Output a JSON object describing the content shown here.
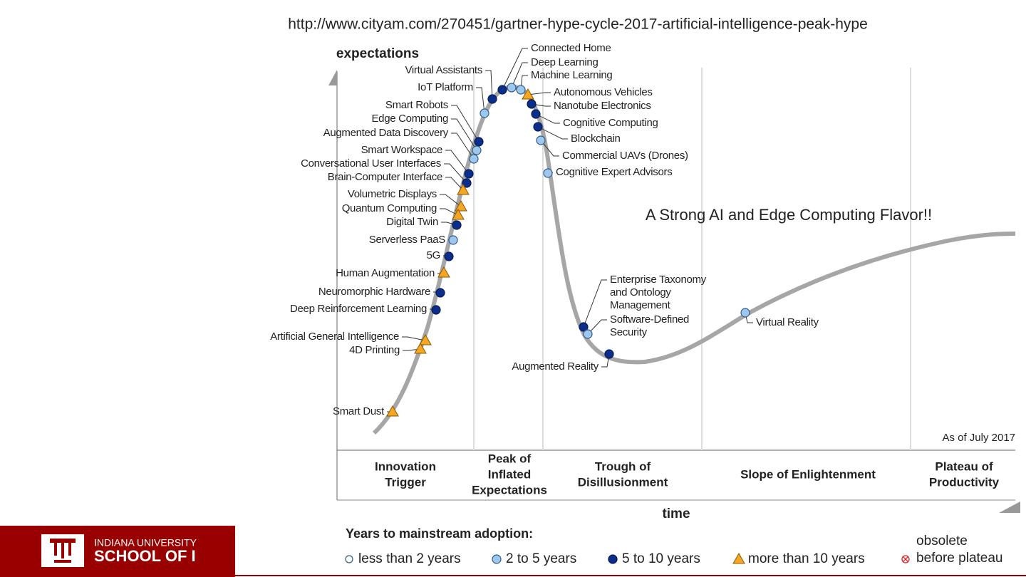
{
  "source_url": "http://www.cityam.com/270451/gartner-hype-cycle-2017-artificial-intelligence-peak-hype",
  "diagram": {
    "y_axis_label": "expectations",
    "x_axis_label": "time",
    "note": "As of July 2017",
    "callout": "A Strong AI and Edge Computing Flavor!!",
    "phases": [
      [
        "Innovation",
        "Trigger"
      ],
      [
        "Peak of",
        "Inflated",
        "Expectations"
      ],
      [
        "Trough of",
        "Disillusionment"
      ],
      [
        "Slope of Enlightenment"
      ],
      [
        "Plateau of",
        "Productivity"
      ]
    ],
    "nodes": [
      {
        "label": "Connected Home"
      },
      {
        "label": "Deep Learning"
      },
      {
        "label": "Machine Learning"
      },
      {
        "label": "Virtual Assistants"
      },
      {
        "label": "IoT Platform"
      },
      {
        "label": "Smart Robots"
      },
      {
        "label": "Edge Computing"
      },
      {
        "label": "Augmented Data Discovery"
      },
      {
        "label": "Smart Workspace"
      },
      {
        "label": "Conversational User Interfaces"
      },
      {
        "label": "Brain-Computer Interface"
      },
      {
        "label": "Volumetric Displays"
      },
      {
        "label": "Quantum Computing"
      },
      {
        "label": "Digital Twin"
      },
      {
        "label": "Serverless PaaS"
      },
      {
        "label": "5G"
      },
      {
        "label": "Human Augmentation"
      },
      {
        "label": "Neuromorphic Hardware"
      },
      {
        "label": "Deep Reinforcement Learning"
      },
      {
        "label": "Artificial General Intelligence"
      },
      {
        "label": "4D Printing"
      },
      {
        "label": "Smart Dust"
      },
      {
        "label": "Autonomous Vehicles"
      },
      {
        "label": "Nanotube Electronics"
      },
      {
        "label": "Cognitive Computing"
      },
      {
        "label": "Blockchain"
      },
      {
        "label": "Commercial UAVs (Drones)"
      },
      {
        "label": "Cognitive Expert Advisors"
      },
      {
        "label": [
          "Enterprise Taxonomy",
          "and Ontology",
          "Management"
        ]
      },
      {
        "label": [
          "Software-Defined",
          "Security"
        ]
      },
      {
        "label": "Augmented Reality"
      },
      {
        "label": "Virtual Reality"
      }
    ]
  },
  "legend": {
    "title": "Years to mainstream adoption:",
    "items": [
      "less than 2 years",
      "2 to 5 years",
      "5 to 10 years",
      "more than 10 years"
    ],
    "obsolete": [
      "obsolete",
      "before plateau"
    ]
  },
  "footer": {
    "university": "INDIANA UNIVERSITY",
    "school": "SCHOOL OF I"
  }
}
